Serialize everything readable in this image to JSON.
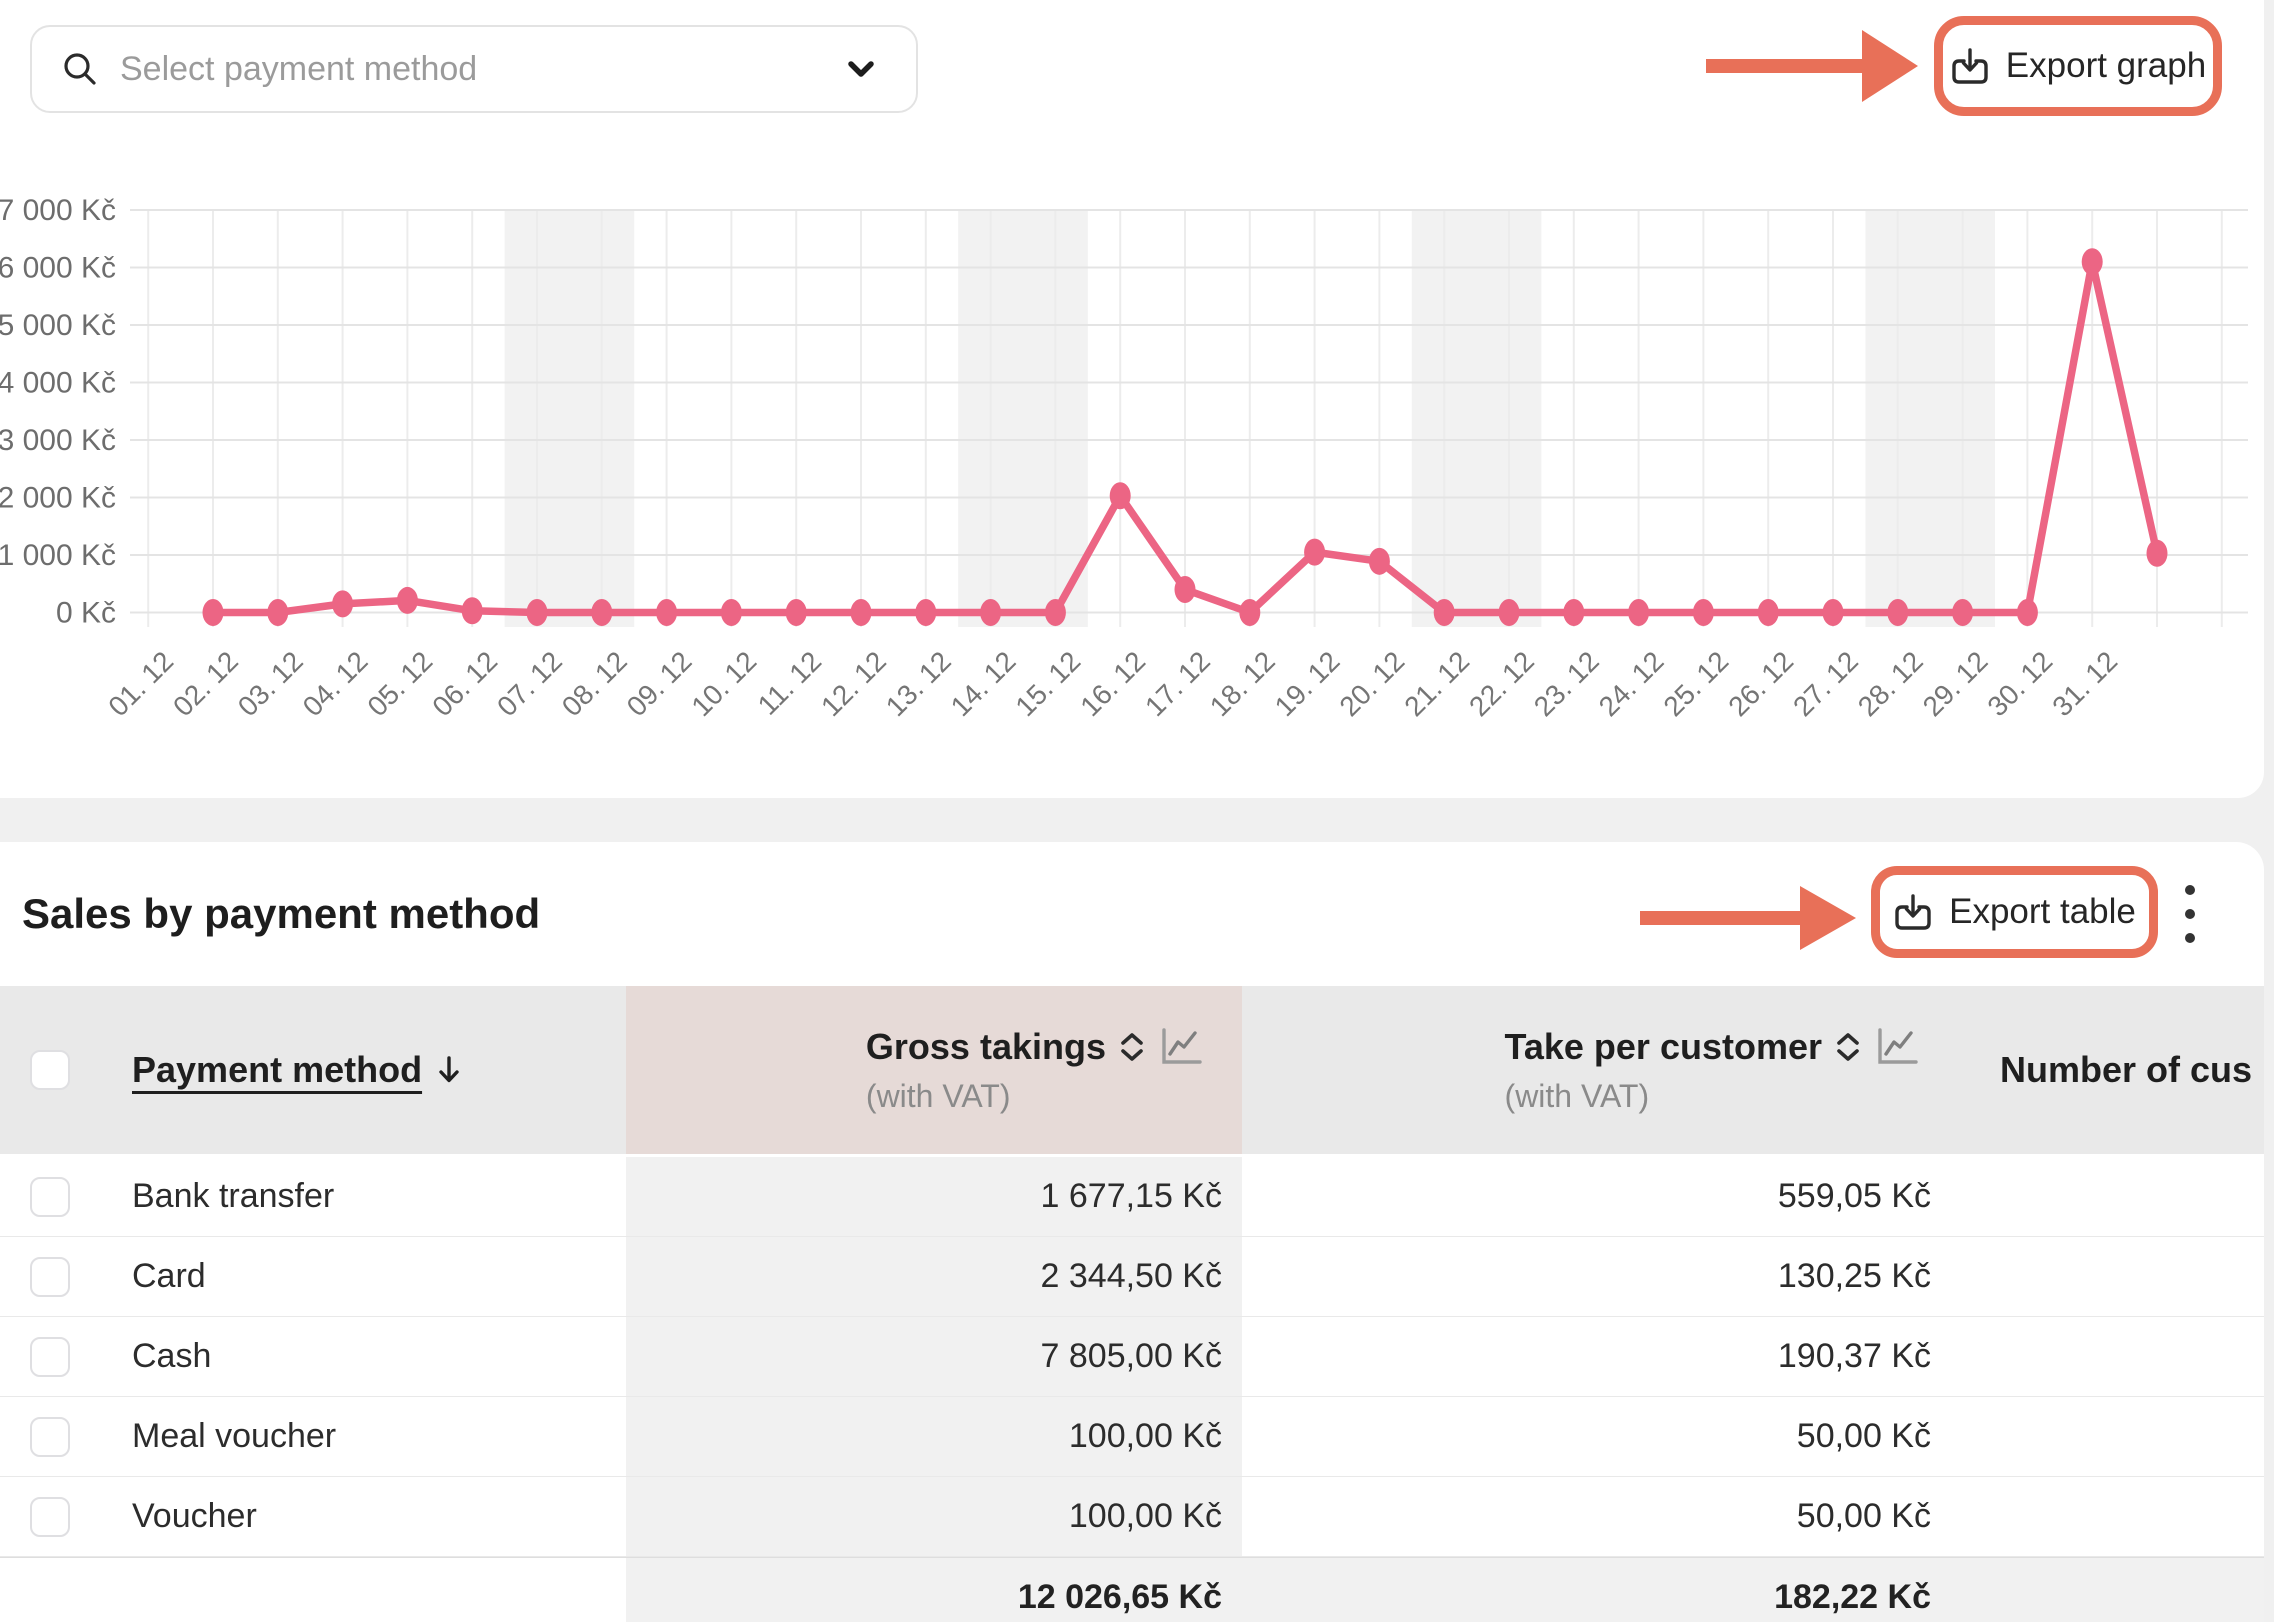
{
  "toolbar": {
    "payment_filter_placeholder": "Select payment method",
    "export_graph_label": "Export graph"
  },
  "sales_table": {
    "title": "Sales by payment method",
    "export_table_label": "Export table",
    "columns": [
      {
        "label": "Payment method",
        "sort": "desc"
      },
      {
        "label": "Gross takings",
        "sublabel": "(with VAT)"
      },
      {
        "label": "Take per customer",
        "sublabel": "(with VAT)"
      },
      {
        "label": "Number of cus"
      }
    ],
    "rows": [
      {
        "method": "Bank transfer",
        "gross": "1 677,15 Kč",
        "take": "559,05 Kč"
      },
      {
        "method": "Card",
        "gross": "2 344,50 Kč",
        "take": "130,25 Kč"
      },
      {
        "method": "Cash",
        "gross": "7 805,00 Kč",
        "take": "190,37 Kč"
      },
      {
        "method": "Meal voucher",
        "gross": "100,00 Kč",
        "take": "50,00 Kč"
      },
      {
        "method": "Voucher",
        "gross": "100,00 Kč",
        "take": "50,00 Kč"
      }
    ],
    "totals": {
      "gross": "12 026,65 Kč",
      "take": "182,22 Kč"
    }
  },
  "chart_data": {
    "type": "line",
    "title": "",
    "xlabel": "",
    "ylabel": "",
    "unit": "Kč",
    "x": [
      "01. 12",
      "02. 12",
      "03. 12",
      "04. 12",
      "05. 12",
      "06. 12",
      "07. 12",
      "08. 12",
      "09. 12",
      "10. 12",
      "11. 12",
      "12. 12",
      "13. 12",
      "14. 12",
      "15. 12",
      "16. 12",
      "17. 12",
      "18. 12",
      "19. 12",
      "20. 12",
      "21. 12",
      "22. 12",
      "23. 12",
      "24. 12",
      "25. 12",
      "26. 12",
      "27. 12",
      "28. 12",
      "29. 12",
      "30. 12",
      "31. 12"
    ],
    "values": [
      0,
      0,
      150,
      210,
      30,
      0,
      0,
      0,
      0,
      0,
      0,
      0,
      0,
      0,
      2030,
      400,
      0,
      1050,
      890,
      0,
      0,
      0,
      0,
      0,
      0,
      0,
      0,
      0,
      0,
      6100,
      1030
    ],
    "ylim": [
      0,
      7000
    ],
    "y_ticks": [
      "0 Kč",
      "1 000 Kč",
      "2 000 Kč",
      "3 000 Kč",
      "4 000 Kč",
      "5 000 Kč",
      "6 000 Kč",
      "7 000 Kč"
    ],
    "grid": true,
    "legend": "none",
    "weekend_bands": [
      [
        6,
        7
      ],
      [
        13,
        14
      ],
      [
        20,
        21
      ],
      [
        27,
        28
      ]
    ],
    "line_color": "#ec6584",
    "band_color": "#f2f2f2",
    "grid_color": "#e4e4e4",
    "axis_text_color": "#6d6d6d"
  },
  "ui_colors": {
    "annotation": "#e87058",
    "header_highlight": "#e6dad7",
    "header_bg": "#e9e9e9",
    "column_bg": "#f1f1f1",
    "page_bg": "#f0f0f0"
  }
}
